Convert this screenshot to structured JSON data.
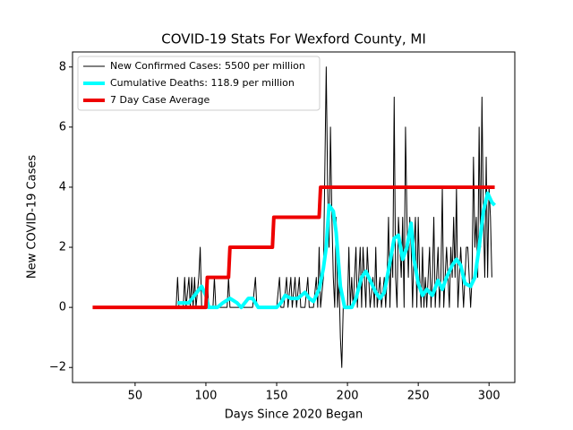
{
  "chart_data": {
    "type": "line",
    "title": "COVID-19 Stats For Wexford County, MI",
    "xlabel": "Days Since 2020 Began",
    "ylabel": "New COVID-19 Cases",
    "xlim": [
      5.8,
      318.2
    ],
    "ylim": [
      -2.5,
      8.5
    ],
    "xticks": [
      50,
      100,
      150,
      200,
      250,
      300
    ],
    "yticks": [
      {
        "value": -2,
        "label": "−2"
      },
      0,
      2,
      4,
      6,
      8
    ],
    "legend": "upper left",
    "series": [
      {
        "name": "New Confirmed Cases: 5500 per million",
        "color": "#000000",
        "linewidth": 1,
        "x": [
          79,
          80,
          81,
          84,
          85,
          86,
          88,
          89,
          90,
          91,
          92,
          93,
          95,
          96,
          97,
          100,
          101,
          102,
          105,
          106,
          107,
          110,
          115,
          116,
          117,
          120,
          125,
          128,
          133,
          135,
          136,
          140,
          150,
          152,
          153,
          155,
          157,
          158,
          160,
          161,
          163,
          164,
          166,
          167,
          170,
          172,
          173,
          176,
          178,
          179,
          180,
          181,
          183,
          185,
          186,
          187,
          188,
          189,
          190,
          191,
          192,
          193,
          194,
          195,
          196,
          197,
          200,
          201,
          202,
          203,
          204,
          206,
          207,
          208,
          209,
          210,
          211,
          212,
          213,
          214,
          215,
          216,
          218,
          219,
          220,
          221,
          223,
          224,
          226,
          227,
          228,
          229,
          230,
          231,
          232,
          233,
          234,
          235,
          236,
          237,
          238,
          239,
          240,
          241,
          242,
          243,
          244,
          245,
          246,
          247,
          248,
          249,
          250,
          251,
          252,
          253,
          254,
          255,
          256,
          258,
          259,
          260,
          261,
          262,
          263,
          264,
          265,
          266,
          267,
          268,
          269,
          270,
          271,
          272,
          273,
          274,
          275,
          276,
          277,
          278,
          279,
          280,
          281,
          282,
          283,
          284,
          285,
          286,
          287,
          288,
          289,
          290,
          291,
          292,
          293,
          294,
          295,
          296,
          297,
          298,
          299,
          300,
          301,
          302
        ],
        "values": [
          0,
          1,
          0,
          0,
          1,
          0,
          1,
          0,
          1,
          0,
          1,
          0,
          1,
          2,
          0,
          0,
          1,
          0,
          0,
          1,
          0,
          0,
          0,
          1,
          0,
          0,
          0,
          0,
          0,
          1,
          0,
          0,
          0,
          1,
          0,
          0,
          1,
          0,
          1,
          0,
          1,
          0,
          1,
          0,
          0,
          1,
          0,
          0,
          1,
          0,
          2,
          0,
          1,
          8,
          4,
          2,
          6,
          3,
          1,
          0,
          3,
          0,
          1,
          -1,
          -2,
          0,
          0,
          2,
          0,
          1,
          0,
          2,
          0,
          1,
          2,
          0,
          2,
          1,
          0,
          2,
          1,
          0,
          1,
          0,
          2,
          0,
          1,
          0,
          1,
          0,
          1,
          3,
          0,
          2,
          1,
          7,
          1,
          0,
          3,
          2,
          1,
          3,
          0,
          6,
          3,
          1,
          3,
          2,
          0,
          2,
          3,
          0,
          3,
          1,
          0,
          2,
          0,
          1,
          0,
          2,
          0,
          1,
          3,
          0,
          1,
          2,
          0,
          1,
          4,
          0,
          1,
          2,
          1,
          0,
          2,
          1,
          3,
          1,
          4,
          0,
          1,
          2,
          1,
          0,
          1,
          2,
          2,
          1,
          0,
          1,
          5,
          2,
          3,
          1,
          6,
          2,
          7,
          3,
          1,
          5,
          1,
          4,
          3,
          1
        ]
      },
      {
        "name": "Cumulative Deaths: 118.9 per million",
        "color": "#00ffff",
        "linewidth": 4,
        "x": [
          80,
          88,
          92,
          97,
          100,
          102,
          108,
          112,
          117,
          122,
          125,
          130,
          133,
          137,
          145,
          150,
          153,
          156,
          160,
          165,
          170,
          173,
          176,
          180,
          183,
          185,
          187,
          190,
          192,
          195,
          198,
          203,
          206,
          210,
          213,
          217,
          220,
          223,
          226,
          230,
          233,
          236,
          239,
          242,
          245,
          247,
          250,
          253,
          256,
          260,
          264,
          267,
          270,
          274,
          277,
          280,
          283,
          287,
          290,
          293,
          296,
          299,
          302,
          304
        ],
        "values": [
          0.15,
          0.15,
          0.4,
          0.7,
          0.4,
          0,
          0,
          0.15,
          0.3,
          0.15,
          0,
          0.3,
          0.3,
          0,
          0,
          0,
          0.15,
          0.4,
          0.3,
          0.3,
          0.5,
          0.3,
          0.2,
          0.6,
          1.3,
          2,
          3.4,
          3.2,
          2.5,
          0.7,
          0,
          0,
          0.3,
          1,
          1.2,
          0.8,
          0.5,
          0.3,
          0.5,
          1.5,
          2.3,
          2.4,
          1.6,
          2,
          2.8,
          1.6,
          0.8,
          0.4,
          0.6,
          0.4,
          0.9,
          0.6,
          1,
          1.4,
          1.6,
          1.4,
          0.8,
          0.7,
          1,
          2,
          3.2,
          3.8,
          3.5,
          3.4
        ]
      },
      {
        "name": "7 Day Case Average",
        "color": "#ee0000",
        "linewidth": 4,
        "x": [
          20,
          100,
          101,
          116,
          117,
          147,
          148,
          180,
          181,
          304
        ],
        "values": [
          0,
          0,
          1,
          1,
          2,
          2,
          3,
          3,
          4,
          4
        ]
      }
    ]
  }
}
